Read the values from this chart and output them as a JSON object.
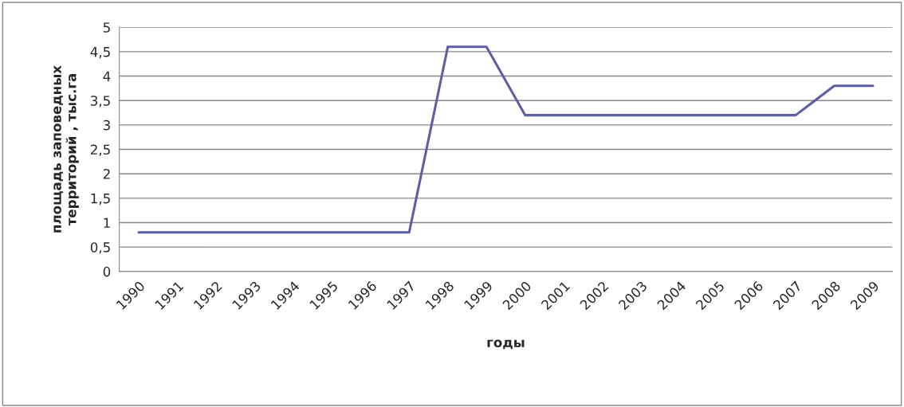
{
  "chart_data": {
    "type": "line",
    "xlabel": "годы",
    "ylabel": "площадь заповедных\nтерриторий , тыс.га",
    "categories": [
      "1990",
      "1991",
      "1992",
      "1993",
      "1994",
      "1995",
      "1996",
      "1997",
      "1998",
      "1999",
      "2000",
      "2001",
      "2002",
      "2003",
      "2004",
      "2005",
      "2006",
      "2007",
      "2008",
      "2009"
    ],
    "series": [
      {
        "color": "#5e5ea2",
        "values": [
          0.8,
          0.8,
          0.8,
          0.8,
          0.8,
          0.8,
          0.8,
          0.8,
          4.6,
          4.6,
          3.2,
          3.2,
          3.2,
          3.2,
          3.2,
          3.2,
          3.2,
          3.2,
          3.8,
          3.8
        ]
      }
    ],
    "ylim": [
      0,
      5
    ],
    "yticks": [
      0,
      {
        "value": 0.5,
        "label": "0,5"
      },
      1,
      {
        "value": 1.5,
        "label": "1,5"
      },
      2,
      {
        "value": 2.5,
        "label": "2,5"
      },
      3,
      {
        "value": 3.5,
        "label": "3,5"
      },
      4,
      {
        "value": 4.5,
        "label": "4,5"
      },
      5
    ],
    "grid": "y",
    "marker": "none",
    "line_style": "solid"
  }
}
